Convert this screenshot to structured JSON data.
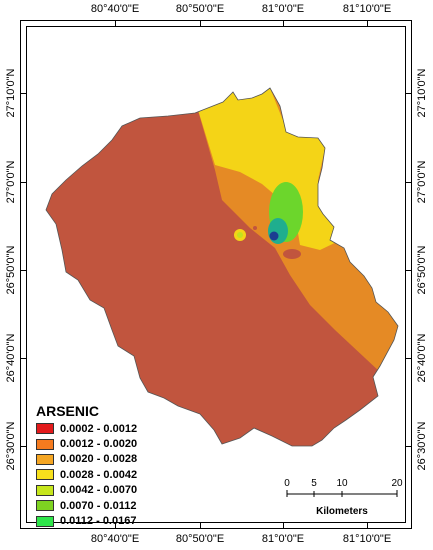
{
  "map": {
    "top_labels": [
      "80°40'0\"E",
      "80°50'0\"E",
      "81°0'0\"E",
      "81°10'0\"E"
    ],
    "bottom_labels": [
      "80°40'0\"E",
      "80°50'0\"E",
      "81°0'0\"E",
      "81°10'0\"E"
    ],
    "left_labels": [
      "27°10'0\"N",
      "27°0'0\"N",
      "26°50'0\"N",
      "26°40'0\"N",
      "26°30'0\"N"
    ],
    "right_labels": [
      "27°10'0\"N",
      "27°0'0\"N",
      "26°50'0\"N",
      "26°40'0\"N",
      "26°30'0\"N"
    ]
  },
  "legend": {
    "title": "ARSENIC",
    "items": [
      {
        "label": "0.0002 - 0.0012",
        "color": "#e31a1c"
      },
      {
        "label": "0.0012 - 0.0020",
        "color": "#f57b1f"
      },
      {
        "label": "0.0020 - 0.0028",
        "color": "#f5a623"
      },
      {
        "label": "0.0028 - 0.0042",
        "color": "#f7e01c"
      },
      {
        "label": "0.0042 - 0.0070",
        "color": "#c6e61c"
      },
      {
        "label": "0.0070 - 0.0112",
        "color": "#7ed321"
      },
      {
        "label": "0.0112 - 0.0167",
        "color": "#2ee64a"
      }
    ]
  },
  "scalebar": {
    "ticks": [
      "0",
      "5",
      "10",
      "20"
    ],
    "unit": "Kilometers"
  },
  "colors": {
    "brown": "#c1553e",
    "orange": "#e58a25",
    "yellow": "#f4d417",
    "lime": "#c4e01f",
    "green": "#6cd62c",
    "teal": "#1fae8e",
    "darkblue": "#1b3e91"
  }
}
